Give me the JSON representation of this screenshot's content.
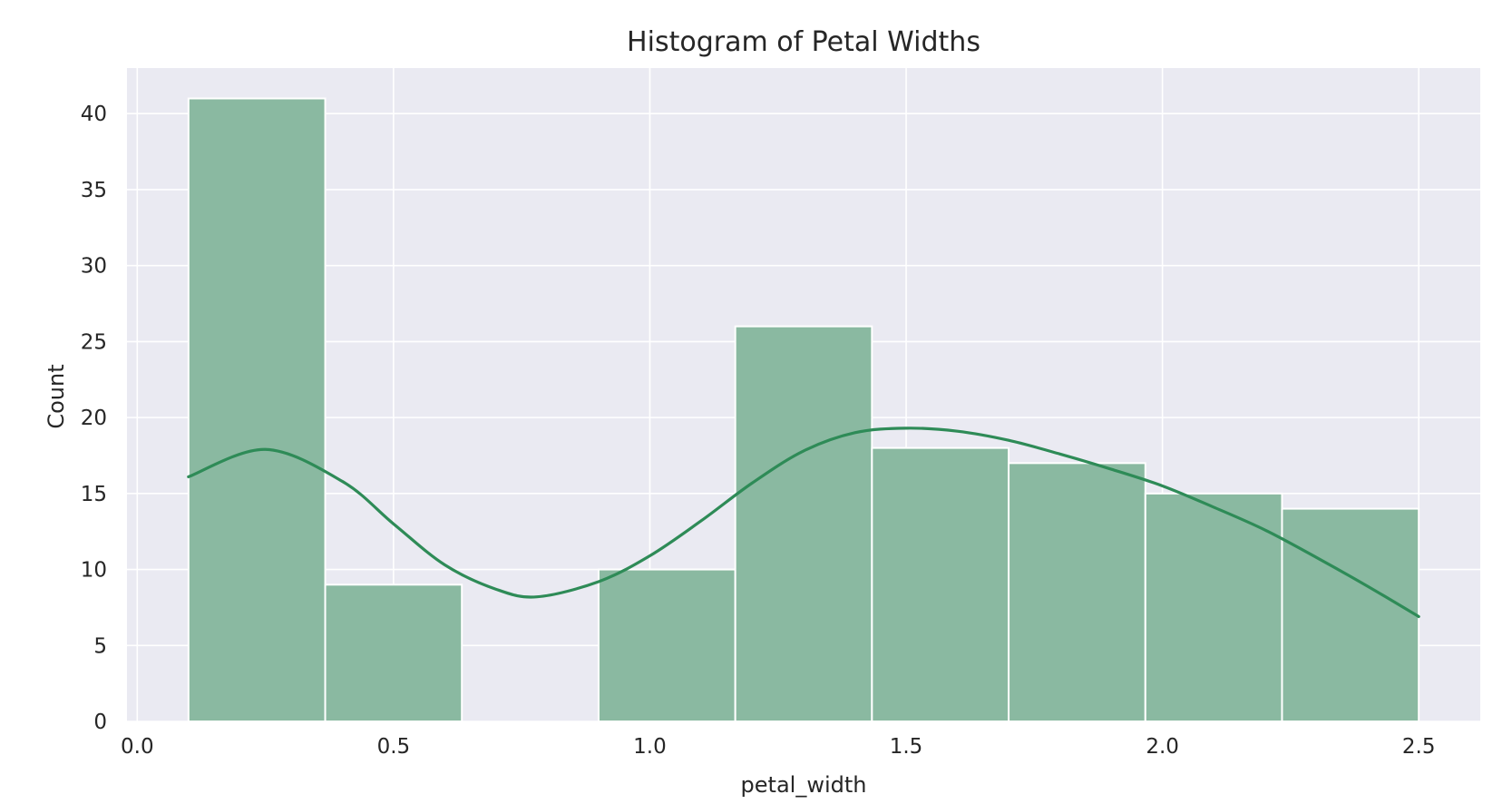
{
  "chart_data": {
    "type": "bar",
    "subtype": "histogram",
    "title": "Histogram of Petal Widths",
    "xlabel": "petal_width",
    "ylabel": "Count",
    "xlim": [
      -0.02,
      2.62
    ],
    "ylim": [
      0,
      43
    ],
    "xticks": [
      0.0,
      0.5,
      1.0,
      1.5,
      2.0,
      2.5
    ],
    "xtick_labels": [
      "0.0",
      "0.5",
      "1.0",
      "1.5",
      "2.0",
      "2.5"
    ],
    "yticks": [
      0,
      5,
      10,
      15,
      20,
      25,
      30,
      35,
      40
    ],
    "ytick_labels": [
      "0",
      "5",
      "10",
      "15",
      "20",
      "25",
      "30",
      "35",
      "40"
    ],
    "bin_edges": [
      0.1,
      0.3667,
      0.6333,
      0.9,
      1.1667,
      1.4333,
      1.7,
      1.9667,
      2.2333,
      2.5
    ],
    "counts": [
      41,
      9,
      0,
      10,
      26,
      18,
      17,
      15,
      14
    ],
    "kde": {
      "x": [
        0.1,
        0.25,
        0.4,
        0.5,
        0.6,
        0.7,
        0.78,
        0.9,
        1.0,
        1.1,
        1.2,
        1.3,
        1.4,
        1.5,
        1.6,
        1.7,
        1.8,
        1.9,
        2.0,
        2.1,
        2.2,
        2.3,
        2.4,
        2.5
      ],
      "y": [
        16.1,
        17.9,
        15.8,
        13.0,
        10.3,
        8.7,
        8.2,
        9.2,
        10.9,
        13.2,
        15.7,
        17.8,
        19.0,
        19.3,
        19.1,
        18.5,
        17.6,
        16.6,
        15.5,
        14.1,
        12.6,
        10.8,
        8.9,
        6.9
      ]
    },
    "grid": true,
    "legend": "none",
    "colors": {
      "plot_background": "#eaeaf2",
      "grid": "#ffffff",
      "bar_fill": "#8ab9a1",
      "bar_edge": "#ffffff",
      "kde_line": "#2e8b57",
      "text": "#262626"
    }
  }
}
